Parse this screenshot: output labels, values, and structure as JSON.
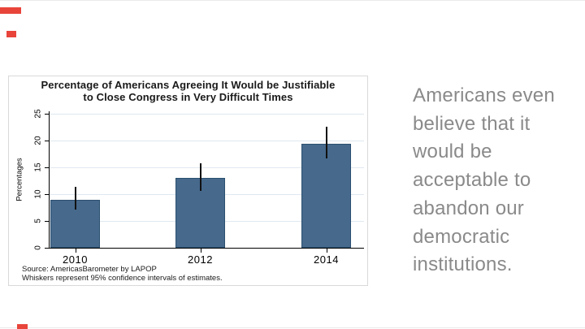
{
  "page": {
    "background": "#ffffff",
    "edge_line_color": "#eaeaea",
    "accent_color": "#e8443a"
  },
  "chart_data": {
    "type": "bar",
    "title": "Percentage of Americans Agreeing It Would be Justifiable to Close Congress in Very Difficult Times",
    "title_lines": [
      "Percentage of Americans Agreeing It Would be Justifiable",
      "to Close Congress in Very Difficult Times"
    ],
    "ylabel": "Percentages",
    "xlabel": "",
    "categories": [
      "2010",
      "2012",
      "2014"
    ],
    "values": [
      9,
      13,
      19.4
    ],
    "ci_low": [
      7.1,
      10.6,
      16.7
    ],
    "ci_high": [
      11.4,
      15.7,
      22.6
    ],
    "yticks": [
      0,
      5,
      10,
      15,
      20,
      25
    ],
    "ylim": [
      0,
      25
    ],
    "grid": true,
    "legend": false,
    "bar_color": "#46698c",
    "bar_border_color": "#2b5070",
    "grid_color": "#dfe8f0",
    "axis_color": "#000000",
    "whisker_color": "#111111",
    "source_note": "Source: AmericasBarometer by LAPOP",
    "whisker_note": "Whiskers represent 95% confidence intervals of estimates."
  },
  "quote": {
    "text": "Americans even believe that it would be acceptable to abandon our democratic institutions.",
    "lines": [
      "Americans even",
      "believe that it",
      "would be",
      "acceptable to",
      "abandon our",
      "democratic",
      "institutions."
    ],
    "color": "#8a8a8a"
  }
}
